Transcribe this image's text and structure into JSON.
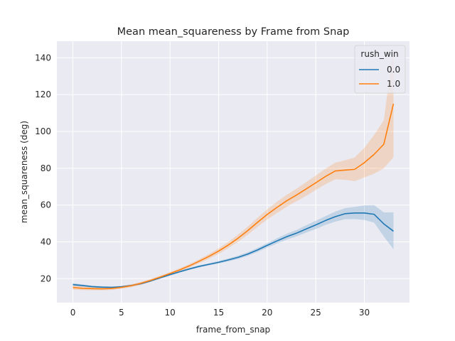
{
  "chart_data": {
    "type": "line",
    "title": "Mean mean_squareness by Frame from Snap",
    "xlabel": "frame_from_snap",
    "ylabel": "mean_squareness (deg)",
    "xlim": [
      -1.65,
      34.65
    ],
    "ylim": [
      7,
      149
    ],
    "x_ticks": [
      0,
      5,
      10,
      15,
      20,
      25,
      30
    ],
    "y_ticks": [
      20,
      40,
      60,
      80,
      100,
      120,
      140
    ],
    "grid": true,
    "legend": {
      "title": "rush_win",
      "placement": "top-right"
    },
    "x": [
      0,
      1,
      2,
      3,
      4,
      5,
      6,
      7,
      8,
      9,
      10,
      11,
      12,
      13,
      14,
      15,
      16,
      17,
      18,
      19,
      20,
      21,
      22,
      23,
      24,
      25,
      26,
      27,
      28,
      29,
      30,
      31,
      32,
      33
    ],
    "series": [
      {
        "name": "0.0",
        "color": "#1f77b4",
        "values": [
          16.8,
          16.3,
          15.7,
          15.4,
          15.3,
          15.6,
          16.3,
          17.3,
          18.8,
          20.5,
          22.2,
          23.8,
          25.3,
          26.7,
          27.8,
          28.9,
          30.2,
          31.6,
          33.4,
          35.6,
          38.1,
          40.5,
          42.8,
          44.7,
          47.0,
          49.2,
          51.6,
          53.7,
          55.3,
          55.7,
          55.7,
          55.0,
          49.8,
          45.8
        ],
        "ci_lower": [
          16.0,
          15.7,
          15.2,
          14.9,
          14.8,
          15.1,
          15.8,
          16.8,
          18.3,
          20.0,
          21.7,
          23.3,
          24.8,
          26.1,
          27.2,
          28.2,
          29.4,
          30.7,
          32.4,
          34.5,
          36.9,
          39.1,
          41.2,
          43.0,
          45.0,
          47.0,
          49.2,
          51.0,
          52.3,
          52.4,
          51.9,
          50.5,
          43.0,
          36.0
        ],
        "ci_upper": [
          17.6,
          16.9,
          16.2,
          15.9,
          15.8,
          16.1,
          16.8,
          17.8,
          19.3,
          21.0,
          22.7,
          24.3,
          25.8,
          27.3,
          28.4,
          29.6,
          31.0,
          32.5,
          34.4,
          36.7,
          39.3,
          41.9,
          44.4,
          46.4,
          49.0,
          51.4,
          54.0,
          56.4,
          58.3,
          59.0,
          59.8,
          60.0,
          56.0,
          56.0
        ]
      },
      {
        "name": "1.0",
        "color": "#ff7f0e",
        "values": [
          15.2,
          14.8,
          14.6,
          14.5,
          14.7,
          15.3,
          16.2,
          17.5,
          19.1,
          20.9,
          22.8,
          24.8,
          27.0,
          29.5,
          32.1,
          35.0,
          38.3,
          42.0,
          46.1,
          50.6,
          54.9,
          58.7,
          62.3,
          65.4,
          68.7,
          72.1,
          75.5,
          78.5,
          79.0,
          79.4,
          83.0,
          87.5,
          93.0,
          115.0
        ],
        "ci_lower": [
          14.0,
          13.8,
          13.7,
          13.7,
          13.9,
          14.5,
          15.4,
          16.7,
          18.3,
          20.1,
          22.0,
          23.9,
          26.0,
          28.4,
          30.8,
          33.5,
          36.6,
          40.0,
          43.9,
          48.1,
          52.2,
          55.6,
          59.1,
          62.0,
          65.0,
          68.2,
          71.3,
          74.0,
          73.7,
          73.0,
          75.0,
          77.0,
          80.0,
          86.0
        ],
        "ci_upper": [
          16.4,
          15.8,
          15.5,
          15.3,
          15.5,
          16.1,
          17.0,
          18.3,
          19.9,
          21.7,
          23.6,
          25.7,
          28.0,
          30.6,
          33.4,
          36.5,
          40.0,
          44.0,
          48.3,
          53.1,
          57.6,
          61.8,
          65.5,
          68.8,
          72.4,
          76.0,
          79.7,
          83.0,
          84.3,
          85.8,
          91.0,
          98.0,
          106.0,
          145.0
        ]
      }
    ]
  }
}
